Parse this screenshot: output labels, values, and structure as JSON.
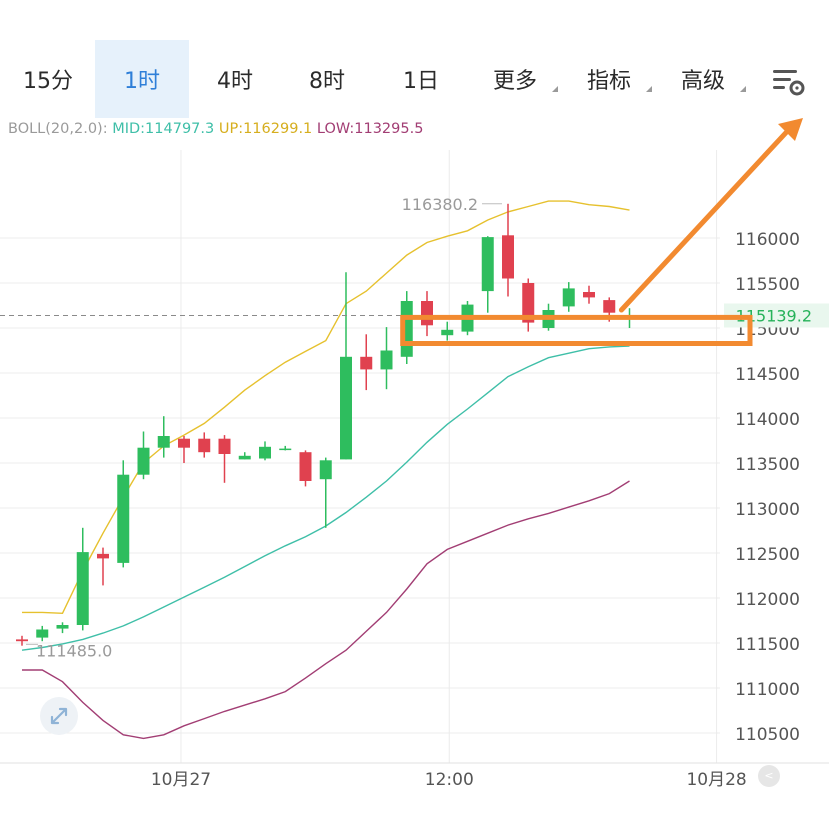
{
  "tabs": [
    {
      "label": "15分",
      "active": false,
      "dropdown": false
    },
    {
      "label": "1时",
      "active": true,
      "dropdown": false
    },
    {
      "label": "4时",
      "active": false,
      "dropdown": false
    },
    {
      "label": "8时",
      "active": false,
      "dropdown": false
    },
    {
      "label": "1日",
      "active": false,
      "dropdown": false
    },
    {
      "label": "更多",
      "active": false,
      "dropdown": true
    },
    {
      "label": "指标",
      "active": false,
      "dropdown": true
    },
    {
      "label": "高级",
      "active": false,
      "dropdown": true
    }
  ],
  "settings_icon": "chart-settings-icon",
  "indicator": {
    "name": "BOLL(20,2.0):",
    "mid": "MID:114797.3",
    "up": "UP:116299.1",
    "low": "LOW:113295.5"
  },
  "colors": {
    "up_candle": "#2ebd5e",
    "down_candle": "#e0414f",
    "mid_line": "#3fbfa8",
    "upper_band": "#e6c12e",
    "lower_band": "#a23e74",
    "annotation": "#f28a30",
    "price_tag": "#26b25a",
    "active_tab": "#2f7fd8",
    "grid": "#ececec",
    "axis_text": "#555555",
    "label_text": "#9a9a9a"
  },
  "chart_data": {
    "type": "candlestick",
    "timeframe": "1时",
    "y_ticks": [
      "116000",
      "115500",
      "115000",
      "114500",
      "114000",
      "113500",
      "113000",
      "112500",
      "112000",
      "111500",
      "111000",
      "110500"
    ],
    "x_labels": [
      "10月27",
      "12:00",
      "10月28"
    ],
    "current_price": "115139.2",
    "high_label": "116380.2",
    "low_label": "111485.0",
    "candles": [
      {
        "o": 111540,
        "h": 111580,
        "l": 111470,
        "c": 111520
      },
      {
        "o": 111560,
        "h": 111690,
        "l": 111520,
        "c": 111650
      },
      {
        "o": 111660,
        "h": 111730,
        "l": 111610,
        "c": 111700
      },
      {
        "o": 111700,
        "h": 112780,
        "l": 111640,
        "c": 112510
      },
      {
        "o": 112490,
        "h": 112560,
        "l": 112140,
        "c": 112440
      },
      {
        "o": 112390,
        "h": 113530,
        "l": 112340,
        "c": 113370
      },
      {
        "o": 113370,
        "h": 113850,
        "l": 113320,
        "c": 113670
      },
      {
        "o": 113670,
        "h": 114020,
        "l": 113560,
        "c": 113800
      },
      {
        "o": 113770,
        "h": 113800,
        "l": 113500,
        "c": 113670
      },
      {
        "o": 113770,
        "h": 113840,
        "l": 113560,
        "c": 113620
      },
      {
        "o": 113770,
        "h": 113810,
        "l": 113280,
        "c": 113600
      },
      {
        "o": 113540,
        "h": 113620,
        "l": 113540,
        "c": 113580
      },
      {
        "o": 113550,
        "h": 113740,
        "l": 113530,
        "c": 113680
      },
      {
        "o": 113650,
        "h": 113690,
        "l": 113640,
        "c": 113660
      },
      {
        "o": 113620,
        "h": 113640,
        "l": 113240,
        "c": 113300
      },
      {
        "o": 113320,
        "h": 113560,
        "l": 112780,
        "c": 113530
      },
      {
        "o": 113540,
        "h": 115620,
        "l": 113540,
        "c": 114680
      },
      {
        "o": 114680,
        "h": 114930,
        "l": 114310,
        "c": 114540
      },
      {
        "o": 114540,
        "h": 115010,
        "l": 114320,
        "c": 114750
      },
      {
        "o": 114680,
        "h": 115410,
        "l": 114600,
        "c": 115300
      },
      {
        "o": 115300,
        "h": 115410,
        "l": 114910,
        "c": 115030
      },
      {
        "o": 114920,
        "h": 115070,
        "l": 114860,
        "c": 114980
      },
      {
        "o": 114960,
        "h": 115300,
        "l": 114920,
        "c": 115260
      },
      {
        "o": 115410,
        "h": 116020,
        "l": 115170,
        "c": 116010
      },
      {
        "o": 116030,
        "h": 116380,
        "l": 115350,
        "c": 115550
      },
      {
        "o": 115500,
        "h": 115550,
        "l": 114960,
        "c": 115060
      },
      {
        "o": 115000,
        "h": 115270,
        "l": 114970,
        "c": 115200
      },
      {
        "o": 115240,
        "h": 115510,
        "l": 115180,
        "c": 115440
      },
      {
        "o": 115400,
        "h": 115470,
        "l": 115270,
        "c": 115340
      },
      {
        "o": 115310,
        "h": 115340,
        "l": 115070,
        "c": 115170
      },
      {
        "o": 115120,
        "h": 115220,
        "l": 115000,
        "c": 115140
      }
    ],
    "mid": [
      111420,
      111450,
      111490,
      111540,
      111610,
      111690,
      111790,
      111900,
      112010,
      112120,
      112230,
      112350,
      112470,
      112580,
      112680,
      112800,
      112950,
      113120,
      113300,
      113510,
      113730,
      113930,
      114100,
      114280,
      114460,
      114570,
      114670,
      114720,
      114770,
      114790,
      114800
    ],
    "upper": [
      111840,
      111840,
      111830,
      112300,
      112720,
      113120,
      113500,
      113690,
      113810,
      113940,
      114120,
      114310,
      114470,
      114620,
      114740,
      114860,
      115270,
      115410,
      115610,
      115810,
      115950,
      116020,
      116080,
      116200,
      116290,
      116350,
      116410,
      116410,
      116370,
      116350,
      116310
    ],
    "lower": [
      111200,
      111200,
      111070,
      110840,
      110640,
      110480,
      110440,
      110480,
      110580,
      110660,
      110740,
      110810,
      110880,
      110960,
      111110,
      111270,
      111420,
      111630,
      111840,
      112100,
      112380,
      112540,
      112630,
      112720,
      112810,
      112880,
      112940,
      113010,
      113080,
      113160,
      113300
    ],
    "annotation": {
      "box_low": 114850,
      "box_high": 115140
    }
  }
}
